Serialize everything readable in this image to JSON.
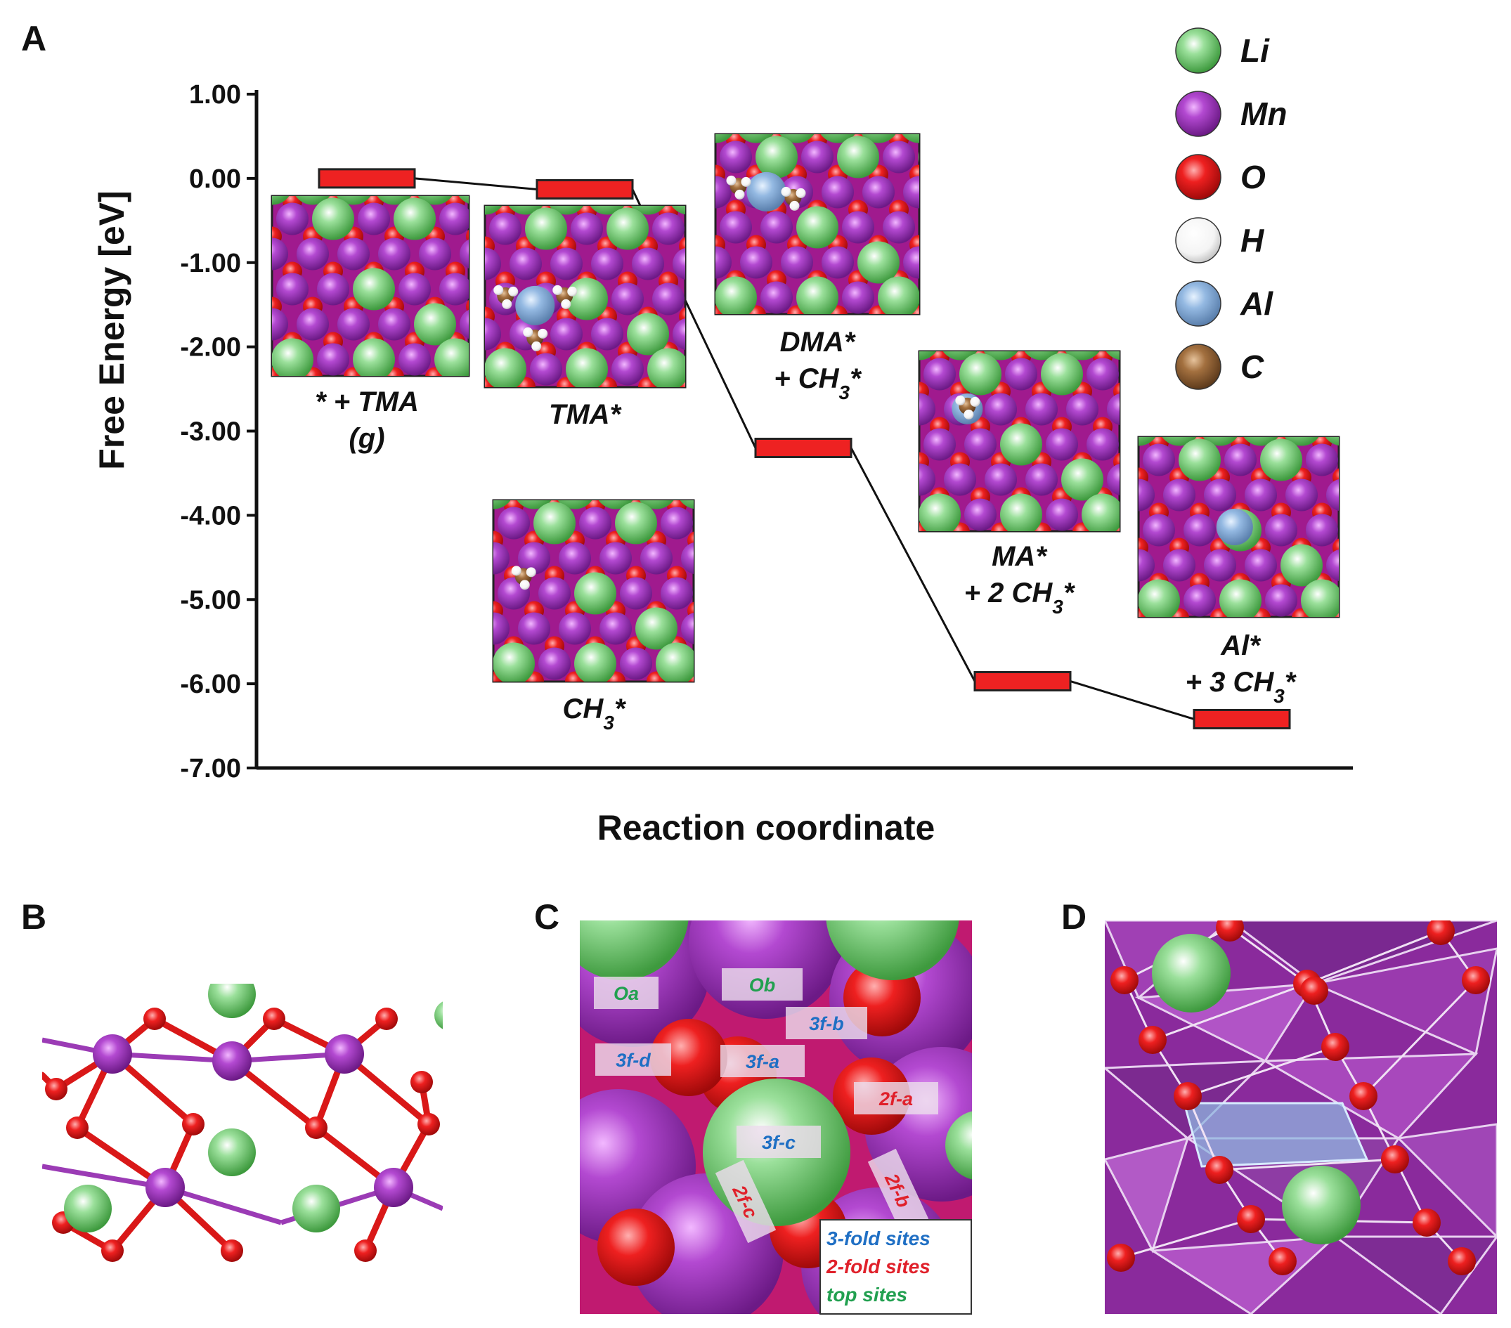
{
  "panels": {
    "a": "A",
    "b": "B",
    "c": "C",
    "d": "D"
  },
  "colors": {
    "li": "#5cc35c",
    "mn": "#8e2aa8",
    "o": "#ee1c1c",
    "h": "#ffffff",
    "al": "#8fb6e0",
    "c": "#9b6a3c",
    "level_fill": "#ee2222",
    "line": "#111111"
  },
  "chart_data": {
    "type": "energy-diagram",
    "xlabel": "Reaction coordinate",
    "ylabel": "Free Energy [eV]",
    "ylim": [
      -7.0,
      1.0
    ],
    "yticks": [
      "1.00",
      "0.00",
      "-1.00",
      "-2.00",
      "-3.00",
      "-4.00",
      "-5.00",
      "-6.00",
      "-7.00"
    ],
    "ytick_values": [
      1,
      0,
      -1,
      -2,
      -3,
      -4,
      -5,
      -6,
      -7
    ],
    "x": [
      1,
      2,
      3,
      4,
      5
    ],
    "values": [
      0.0,
      -0.13,
      -3.2,
      -5.97,
      -6.42
    ],
    "states": [
      {
        "lines": [
          "* + TMA",
          "(g)"
        ]
      },
      {
        "lines": [
          "TMA*"
        ]
      },
      {
        "lines": [
          "DMA*",
          "+ CH3*"
        ]
      },
      {
        "lines": [
          "MA*",
          "+ 2 CH3*"
        ]
      },
      {
        "lines": [
          "Al*",
          "+ 3 CH3*"
        ]
      }
    ],
    "extra_label": "CH3*",
    "legend": [
      {
        "symbol": "Li",
        "color": "#5cc35c"
      },
      {
        "symbol": "Mn",
        "color": "#8e2aa8"
      },
      {
        "symbol": "O",
        "color": "#ee1c1c"
      },
      {
        "symbol": "H",
        "color": "#ffffff"
      },
      {
        "symbol": "Al",
        "color": "#8fb6e0"
      },
      {
        "symbol": "C",
        "color": "#9b6a3c"
      }
    ]
  },
  "panel_c": {
    "sites": [
      {
        "text": "Oa",
        "kind": "top"
      },
      {
        "text": "Ob",
        "kind": "top"
      },
      {
        "text": "3f-b",
        "kind": "three"
      },
      {
        "text": "3f-d",
        "kind": "three"
      },
      {
        "text": "3f-a",
        "kind": "three"
      },
      {
        "text": "2f-a",
        "kind": "two"
      },
      {
        "text": "3f-c",
        "kind": "three"
      },
      {
        "text": "2f-c",
        "kind": "two"
      },
      {
        "text": "2f-b",
        "kind": "two"
      }
    ],
    "legend": [
      {
        "text": "3-fold sites",
        "color": "#1f6fc4"
      },
      {
        "text": "2-fold sites",
        "color": "#e0202a"
      },
      {
        "text": "top sites",
        "color": "#22a050"
      }
    ]
  }
}
